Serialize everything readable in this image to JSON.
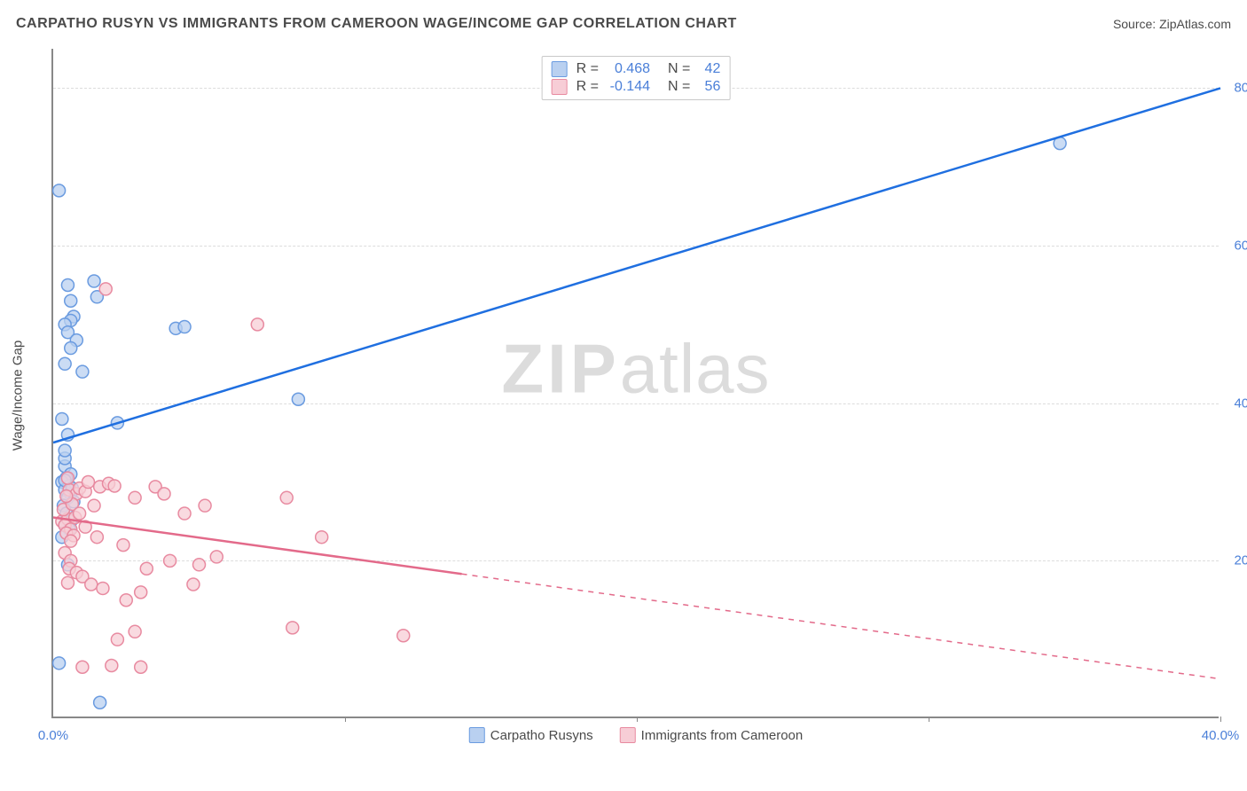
{
  "header": {
    "title": "CARPATHO RUSYN VS IMMIGRANTS FROM CAMEROON WAGE/INCOME GAP CORRELATION CHART",
    "source_label": "Source: ",
    "source_name": "ZipAtlas.com"
  },
  "watermark": {
    "zip": "ZIP",
    "atlas": "atlas"
  },
  "chart": {
    "type": "scatter",
    "y_axis_title": "Wage/Income Gap",
    "xlim": [
      0,
      40
    ],
    "ylim": [
      0,
      85
    ],
    "x_ticks": [
      0,
      10,
      20,
      30,
      40
    ],
    "x_tick_labels": [
      "0.0%",
      "",
      "",
      "",
      "40.0%"
    ],
    "y_ticks": [
      20,
      40,
      60,
      80
    ],
    "y_tick_labels": [
      "20.0%",
      "40.0%",
      "60.0%",
      "80.0%"
    ],
    "grid_color": "#dcdcdc",
    "axis_color": "#888888",
    "background_color": "#ffffff",
    "marker_radius": 7,
    "marker_stroke": 1.5,
    "series": [
      {
        "id": "carpatho",
        "label": "Carpatho Rusyns",
        "fill": "#b9d0f0",
        "stroke": "#6a9be0",
        "line_color": "#1f6fe0",
        "line_width": 2.5,
        "R": "0.468",
        "N": "42",
        "trend": {
          "x0": 0,
          "y0": 35,
          "x1": 40,
          "y1": 80,
          "solid_until_x": 40
        },
        "points": [
          [
            0.2,
            67
          ],
          [
            0.4,
            32
          ],
          [
            0.5,
            55
          ],
          [
            0.6,
            53
          ],
          [
            0.7,
            51
          ],
          [
            0.6,
            50.5
          ],
          [
            0.4,
            50
          ],
          [
            0.5,
            49
          ],
          [
            0.8,
            48
          ],
          [
            0.6,
            47
          ],
          [
            0.4,
            45
          ],
          [
            1.0,
            44
          ],
          [
            1.4,
            55.5
          ],
          [
            1.5,
            53.5
          ],
          [
            0.3,
            38
          ],
          [
            0.5,
            36
          ],
          [
            0.4,
            33
          ],
          [
            0.6,
            31
          ],
          [
            0.45,
            30.5
          ],
          [
            0.3,
            30
          ],
          [
            0.55,
            29.5
          ],
          [
            0.4,
            29
          ],
          [
            0.6,
            28.5
          ],
          [
            0.5,
            28
          ],
          [
            0.35,
            27
          ],
          [
            0.7,
            27.5
          ],
          [
            0.45,
            26
          ],
          [
            0.6,
            25
          ],
          [
            0.4,
            24.5
          ],
          [
            0.55,
            24
          ],
          [
            0.3,
            23
          ],
          [
            0.5,
            19.5
          ],
          [
            0.4,
            30.2
          ],
          [
            0.65,
            29.2
          ],
          [
            0.2,
            7
          ],
          [
            1.6,
            2
          ],
          [
            4.2,
            49.5
          ],
          [
            4.5,
            49.7
          ],
          [
            2.2,
            37.5
          ],
          [
            8.4,
            40.5
          ],
          [
            34.5,
            73
          ],
          [
            0.4,
            34
          ]
        ]
      },
      {
        "id": "cameroon",
        "label": "Immigrants from Cameroon",
        "fill": "#f7cdd6",
        "stroke": "#e88aa0",
        "line_color": "#e36a8a",
        "line_width": 2.5,
        "R": "-0.144",
        "N": "56",
        "trend": {
          "x0": 0,
          "y0": 25.5,
          "x1": 40,
          "y1": 5,
          "solid_until_x": 14
        },
        "points": [
          [
            0.3,
            25
          ],
          [
            0.5,
            25.3
          ],
          [
            0.4,
            24.5
          ],
          [
            0.6,
            24
          ],
          [
            0.45,
            23.5
          ],
          [
            0.7,
            23.2
          ],
          [
            0.55,
            29
          ],
          [
            0.8,
            28.5
          ],
          [
            0.9,
            29.2
          ],
          [
            1.1,
            28.8
          ],
          [
            1.4,
            27
          ],
          [
            1.2,
            30
          ],
          [
            1.6,
            29.4
          ],
          [
            1.9,
            29.8
          ],
          [
            1.5,
            23
          ],
          [
            0.4,
            21
          ],
          [
            0.6,
            20
          ],
          [
            0.55,
            19
          ],
          [
            0.8,
            18.5
          ],
          [
            1.0,
            18
          ],
          [
            1.3,
            17
          ],
          [
            0.5,
            17.2
          ],
          [
            1.7,
            16.5
          ],
          [
            2.1,
            29.5
          ],
          [
            2.4,
            22
          ],
          [
            2.8,
            28
          ],
          [
            3.2,
            19
          ],
          [
            3.5,
            29.4
          ],
          [
            3.8,
            28.5
          ],
          [
            4.0,
            20
          ],
          [
            4.5,
            26
          ],
          [
            4.8,
            17
          ],
          [
            5.2,
            27
          ],
          [
            5.6,
            20.5
          ],
          [
            5.0,
            19.5
          ],
          [
            3.0,
            16
          ],
          [
            2.5,
            15
          ],
          [
            2.2,
            10
          ],
          [
            1.0,
            6.5
          ],
          [
            2.0,
            6.7
          ],
          [
            3.0,
            6.5
          ],
          [
            2.8,
            11
          ],
          [
            8.0,
            28
          ],
          [
            8.2,
            11.5
          ],
          [
            9.2,
            23
          ],
          [
            12.0,
            10.5
          ],
          [
            7.0,
            50
          ],
          [
            1.8,
            54.5
          ],
          [
            0.35,
            26.5
          ],
          [
            0.65,
            27.2
          ],
          [
            0.75,
            25.5
          ],
          [
            0.5,
            30.5
          ],
          [
            0.9,
            26
          ],
          [
            0.45,
            28.2
          ],
          [
            1.1,
            24.3
          ],
          [
            0.6,
            22.5
          ]
        ]
      }
    ],
    "legend_top": {
      "R_label": "R =",
      "N_label": "N ="
    },
    "legend_bottom_labels": [
      "Carpatho Rusyns",
      "Immigrants from Cameroon"
    ]
  }
}
